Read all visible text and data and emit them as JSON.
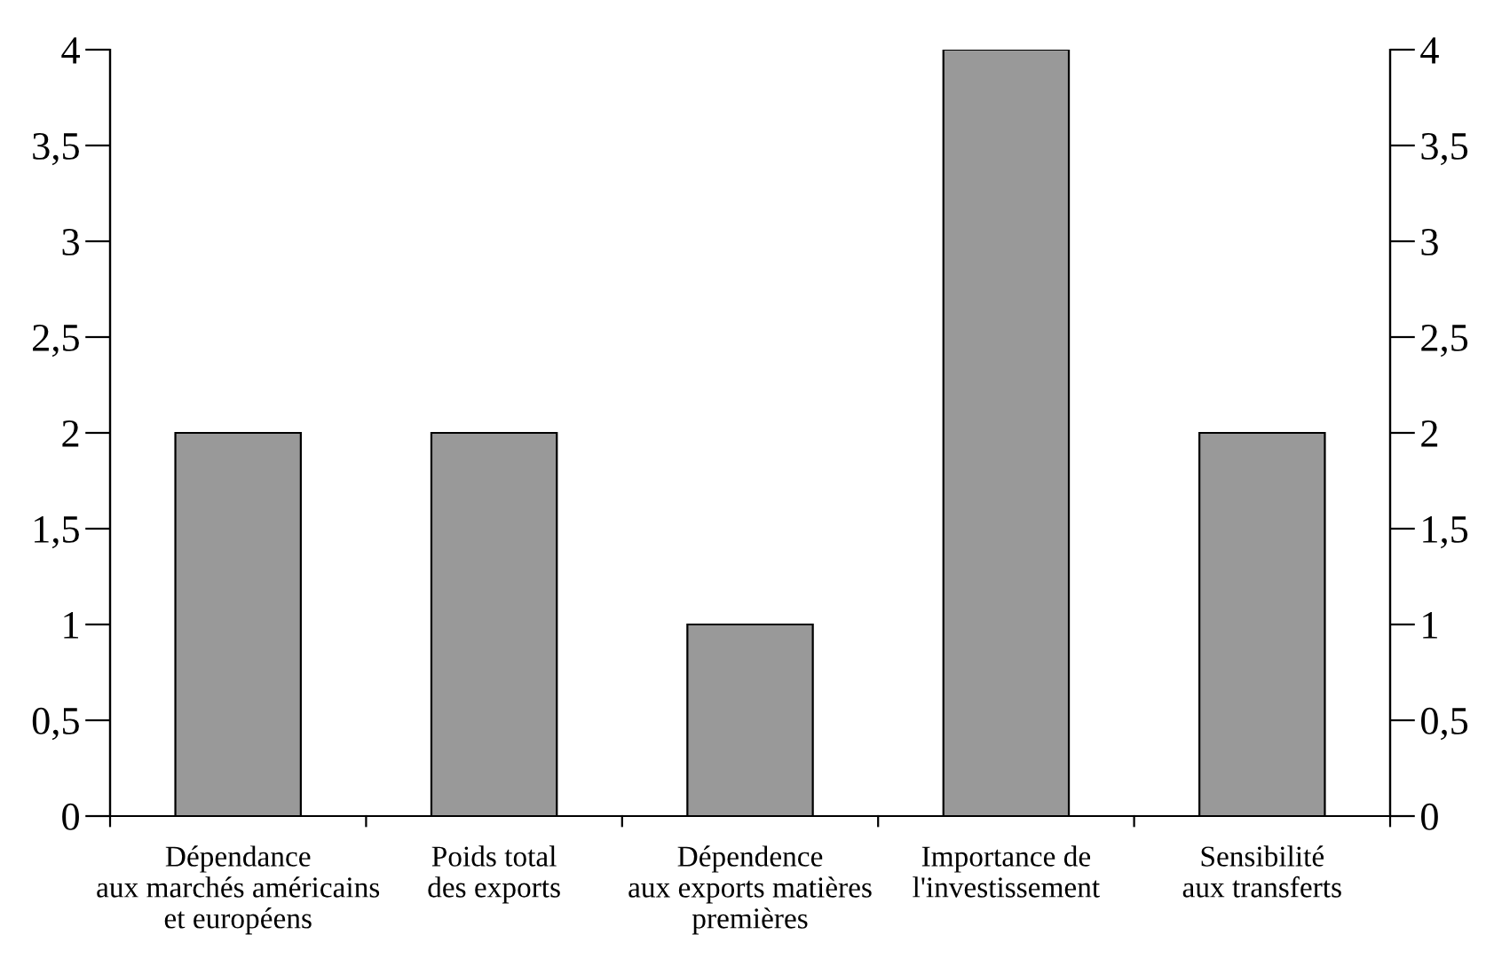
{
  "chart_data": {
    "type": "bar",
    "categories": [
      "Dépendance\naux marchés américains\net européens",
      "Poids total\ndes exports",
      "Dépendence\naux exports matières\npremières",
      "Importance de\nl'investissement",
      "Sensibilité\naux transferts"
    ],
    "values": [
      2,
      2,
      1,
      4,
      2
    ],
    "color": "#999999",
    "ylim": [
      0,
      4
    ],
    "yticks": [
      0,
      {
        "value": 0.5,
        "label": "0,5"
      },
      1,
      {
        "value": 1.5,
        "label": "1,5"
      },
      2,
      {
        "value": 2.5,
        "label": "2,5"
      },
      3,
      {
        "value": 3.5,
        "label": "3,5"
      },
      4
    ],
    "y2lim": [
      0,
      4
    ],
    "y2ticks": [
      0,
      {
        "value": 0.5,
        "label": "0,5"
      },
      1,
      {
        "value": 1.5,
        "label": "1,5"
      },
      2,
      {
        "value": 2.5,
        "label": "2,5"
      },
      3,
      {
        "value": 3.5,
        "label": "3,5"
      },
      4
    ],
    "grid": false,
    "legend": false
  }
}
